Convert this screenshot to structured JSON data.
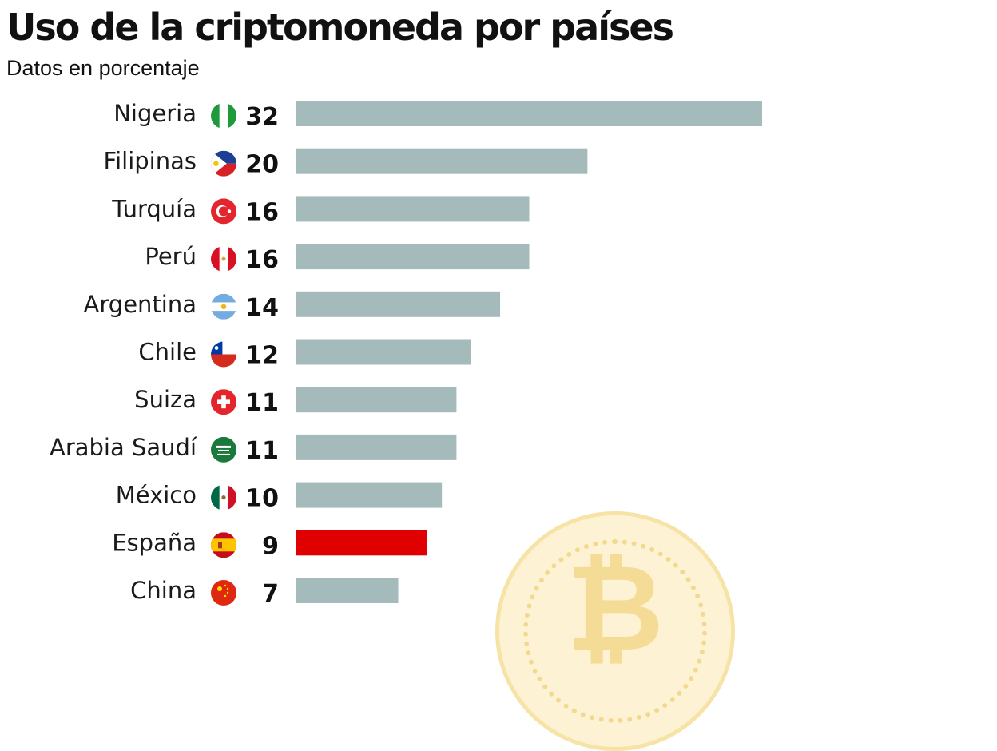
{
  "title": "Uso de la criptomoneda por países",
  "subtitle": "Datos en porcentaje",
  "colors": {
    "bar": "#a5bbbb",
    "highlight": "#e10000"
  },
  "icons": {
    "background": "bitcoin-coin-icon"
  },
  "chart_data": {
    "type": "bar",
    "orientation": "horizontal",
    "categories": [
      "Nigeria",
      "Filipinas",
      "Turquía",
      "Perú",
      "Argentina",
      "Chile",
      "Suiza",
      "Arabia Saudí",
      "México",
      "España",
      "China"
    ],
    "values": [
      32,
      20,
      16,
      16,
      14,
      12,
      11,
      11,
      10,
      9,
      7
    ],
    "flags": [
      "nigeria-flag-icon",
      "philippines-flag-icon",
      "turkey-flag-icon",
      "peru-flag-icon",
      "argentina-flag-icon",
      "chile-flag-icon",
      "switzerland-flag-icon",
      "saudi-arabia-flag-icon",
      "mexico-flag-icon",
      "spain-flag-icon",
      "china-flag-icon"
    ],
    "highlight_category": "España",
    "xlim": [
      0,
      32
    ],
    "grid": false,
    "legend": "none"
  }
}
